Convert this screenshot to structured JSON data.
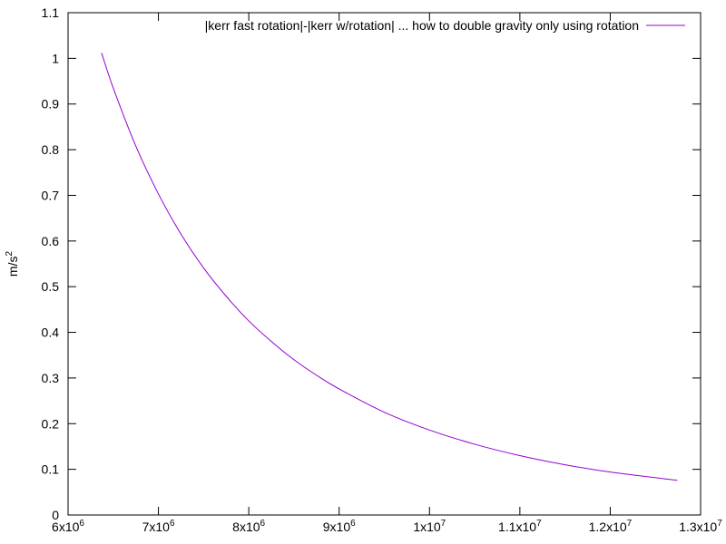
{
  "chart_data": {
    "type": "line",
    "title": "",
    "xlabel": "",
    "ylabel": {
      "base": "m/s",
      "exponent": "2"
    },
    "xlim": [
      6000000,
      13000000
    ],
    "ylim": [
      0,
      1.1
    ],
    "grid": false,
    "legend_position": "top-right",
    "x_ticks": [
      {
        "value": 6000000,
        "mantissa": "6x10",
        "exponent": "6"
      },
      {
        "value": 7000000,
        "mantissa": "7x10",
        "exponent": "6"
      },
      {
        "value": 8000000,
        "mantissa": "8x10",
        "exponent": "6"
      },
      {
        "value": 9000000,
        "mantissa": "9x10",
        "exponent": "6"
      },
      {
        "value": 10000000,
        "mantissa": "1x10",
        "exponent": "7"
      },
      {
        "value": 11000000,
        "mantissa": "1.1x10",
        "exponent": "7"
      },
      {
        "value": 12000000,
        "mantissa": "1.2x10",
        "exponent": "7"
      },
      {
        "value": 13000000,
        "mantissa": "1.3x10",
        "exponent": "7"
      }
    ],
    "y_ticks": [
      {
        "value": 0,
        "label": "0"
      },
      {
        "value": 0.1,
        "label": "0.1"
      },
      {
        "value": 0.2,
        "label": "0.2"
      },
      {
        "value": 0.3,
        "label": "0.3"
      },
      {
        "value": 0.4,
        "label": "0.4"
      },
      {
        "value": 0.5,
        "label": "0.5"
      },
      {
        "value": 0.6,
        "label": "0.6"
      },
      {
        "value": 0.7,
        "label": "0.7"
      },
      {
        "value": 0.8,
        "label": "0.8"
      },
      {
        "value": 0.9,
        "label": "0.9"
      },
      {
        "value": 1,
        "label": "1"
      },
      {
        "value": 1.1,
        "label": "1.1"
      }
    ],
    "series": [
      {
        "name": "|kerr fast rotation|-|kerr w/rotation| ... how to double gravity only using rotation",
        "color": "#9400d3",
        "x": [
          6371000,
          6500000,
          6750000,
          7000000,
          7250000,
          7500000,
          7750000,
          8000000,
          8250000,
          8500000,
          8750000,
          9000000,
          9500000,
          10000000,
          10500000,
          11000000,
          11500000,
          12000000,
          12742000
        ],
        "y": [
          1.012,
          0.935,
          0.808,
          0.703,
          0.615,
          0.541,
          0.479,
          0.425,
          0.38,
          0.34,
          0.306,
          0.276,
          0.225,
          0.186,
          0.155,
          0.13,
          0.11,
          0.094,
          0.076
        ]
      }
    ]
  }
}
